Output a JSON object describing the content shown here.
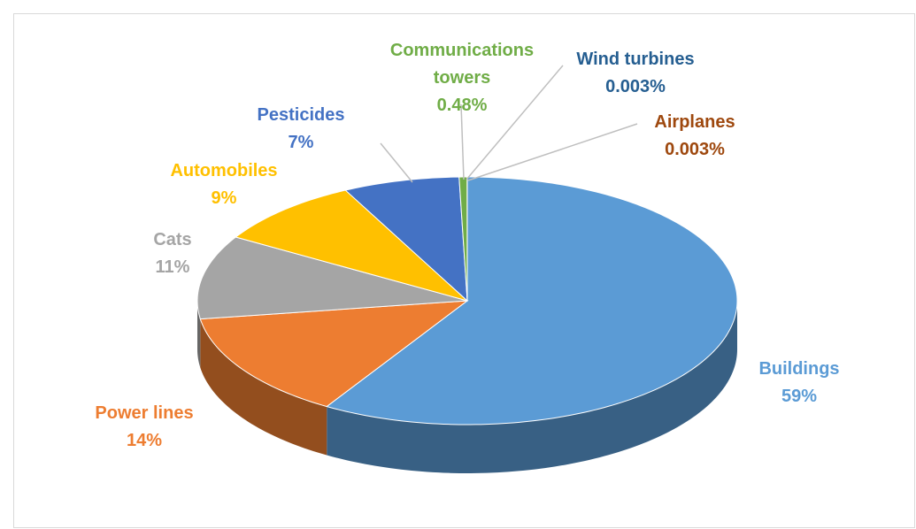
{
  "chart_data": {
    "type": "pie",
    "categories": [
      "Buildings",
      "Power lines",
      "Cats",
      "Automobiles",
      "Pesticides",
      "Communications towers",
      "Wind turbines",
      "Airplanes"
    ],
    "values": [
      59,
      14,
      11,
      9,
      7,
      0.48,
      0.003,
      0.003
    ],
    "value_labels": [
      "59%",
      "14%",
      "11%",
      "9%",
      "7%",
      "0.48%",
      "0.003%",
      "0.003%"
    ],
    "colors": [
      "#5b9bd5",
      "#ed7d31",
      "#a5a5a5",
      "#ffc000",
      "#4472c4",
      "#70ad47",
      "#255e91",
      "#9e480e"
    ]
  }
}
